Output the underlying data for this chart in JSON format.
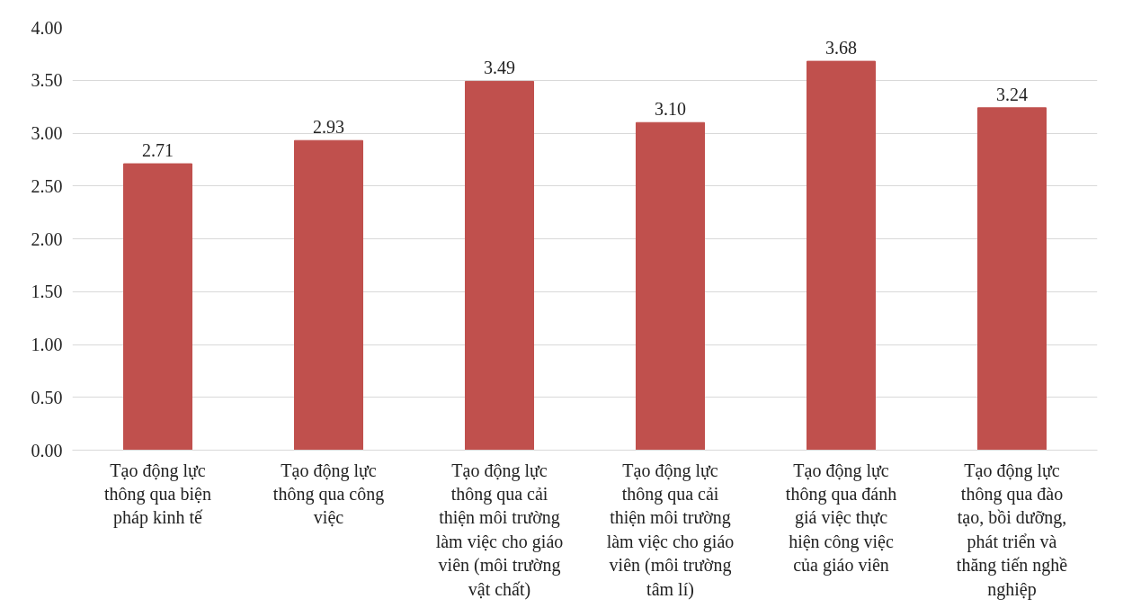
{
  "chart_data": {
    "type": "bar",
    "categories": [
      "Tạo động lực thông qua biện pháp kinh tế",
      "Tạo động lực thông qua công việc",
      "Tạo động lực thông qua cải thiện môi trường làm việc cho giáo viên (môi trường vật chất)",
      "Tạo động lực thông qua cải thiện môi trường làm việc cho giáo viên (môi trường tâm lí)",
      "Tạo động lực thông qua đánh giá việc thực hiện công việc của giáo viên",
      "Tạo động lực thông qua đào tạo, bồi dưỡng, phát triển và thăng tiến nghề nghiệp"
    ],
    "values": [
      2.71,
      2.93,
      3.49,
      3.1,
      3.68,
      3.24
    ],
    "color": "#c0504d",
    "ylim": [
      0,
      4
    ],
    "yticks": [
      {
        "value": 0,
        "label": "0.00"
      },
      {
        "value": 0.5,
        "label": "0.50"
      },
      {
        "value": 1,
        "label": "1.00"
      },
      {
        "value": 1.5,
        "label": "1.50"
      },
      {
        "value": 2,
        "label": "2.00"
      },
      {
        "value": 2.5,
        "label": "2.50"
      },
      {
        "value": 3,
        "label": "3.00"
      },
      {
        "value": 3.5,
        "label": "3.50"
      },
      {
        "value": 4,
        "label": "4.00"
      }
    ],
    "value_labels": [
      "2.71",
      "2.93",
      "3.49",
      "3.10",
      "3.68",
      "3.24"
    ],
    "grid": "y"
  }
}
